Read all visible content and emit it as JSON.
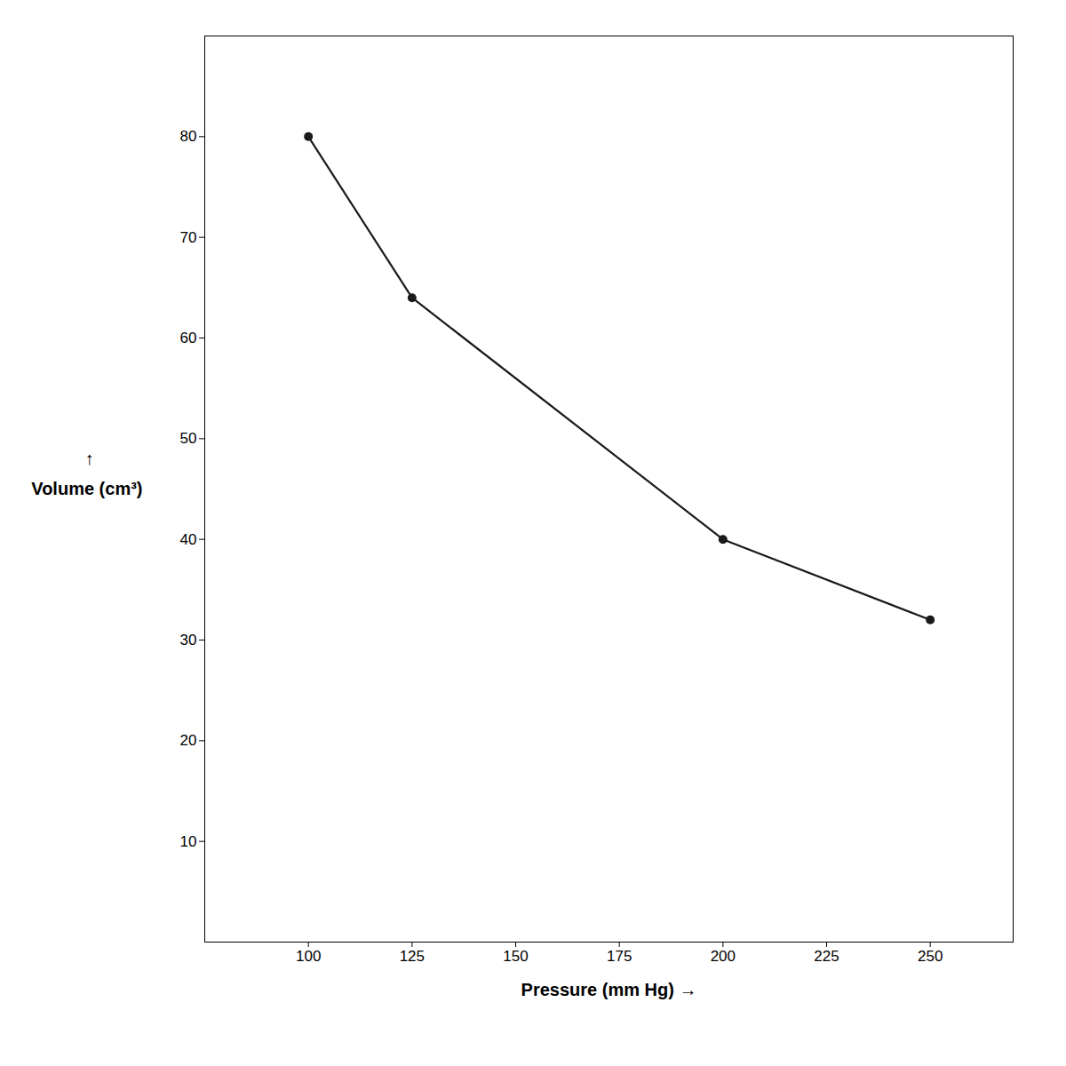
{
  "chart_data": {
    "type": "line",
    "xlabel": "Pressure (mm Hg) →",
    "ylabel": "Volume (cm³)",
    "annotations": [
      "↑"
    ],
    "x": [
      100,
      125,
      200,
      250
    ],
    "values": [
      80,
      64,
      40,
      32
    ],
    "color": "#1a1a1a",
    "marker": "o",
    "line_style": "solid",
    "xlim": [
      75,
      270
    ],
    "xticks": [
      100,
      125,
      150,
      175,
      200,
      225,
      250
    ],
    "ylim": [
      0,
      90
    ],
    "yticks": [
      10,
      20,
      30,
      40,
      50,
      60,
      70,
      80
    ],
    "grid": false
  }
}
